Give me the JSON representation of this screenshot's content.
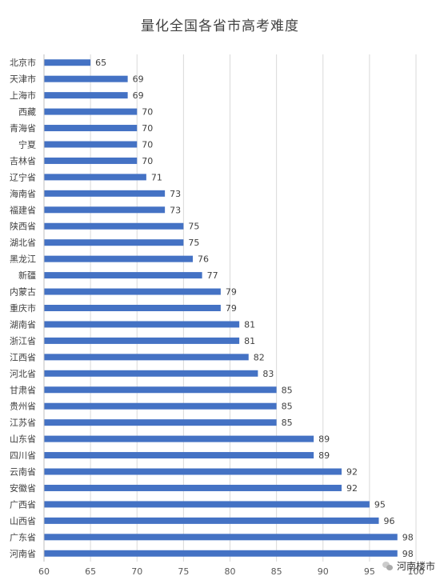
{
  "chart_data": {
    "type": "bar",
    "orientation": "horizontal",
    "title": "量化全国各省市高考难度",
    "xlabel": "",
    "ylabel": "",
    "xlim": [
      60,
      100
    ],
    "xticks": [
      60,
      65,
      70,
      75,
      80,
      85,
      90,
      95,
      100
    ],
    "grid": true,
    "bar_color": "#4472c4",
    "data_labels": true,
    "categories": [
      "北京市",
      "天津市",
      "上海市",
      "西藏",
      "青海省",
      "宁夏",
      "吉林省",
      "辽宁省",
      "海南省",
      "福建省",
      "陕西省",
      "湖北省",
      "黑龙江",
      "新疆",
      "内蒙古",
      "重庆市",
      "湖南省",
      "浙江省",
      "江西省",
      "河北省",
      "甘肃省",
      "贵州省",
      "江苏省",
      "山东省",
      "四川省",
      "云南省",
      "安徽省",
      "广西省",
      "山西省",
      "广东省",
      "河南省"
    ],
    "values": [
      65,
      69,
      69,
      70,
      70,
      70,
      70,
      71,
      73,
      73,
      75,
      75,
      76,
      77,
      79,
      79,
      81,
      81,
      82,
      83,
      85,
      85,
      85,
      89,
      89,
      92,
      92,
      95,
      96,
      98,
      98
    ]
  },
  "watermark": {
    "text": "河南楼市",
    "icon": "wechat-icon"
  }
}
